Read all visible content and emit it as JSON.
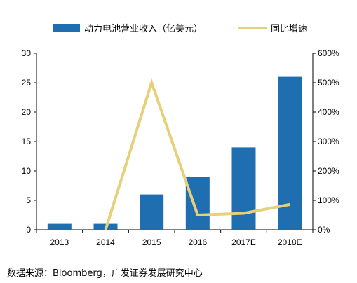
{
  "chart_data": {
    "type": "bar+line",
    "categories": [
      "2013",
      "2014",
      "2015",
      "2016",
      "2017E",
      "2018E"
    ],
    "series": [
      {
        "name": "动力电池营业收入（亿美元）",
        "type": "bar",
        "axis": "left",
        "color": "#1f6eb0",
        "values": [
          1,
          1,
          6,
          9,
          14,
          26
        ]
      },
      {
        "name": "同比增速",
        "type": "line",
        "axis": "right",
        "color": "#e6d07a",
        "values": [
          0,
          0,
          500,
          50,
          56,
          86
        ]
      }
    ],
    "left_axis": {
      "min": 0,
      "max": 30,
      "ticks": [
        "0",
        "5",
        "10",
        "15",
        "20",
        "25",
        "30"
      ]
    },
    "right_axis": {
      "min": 0,
      "max": 600,
      "ticks": [
        "0%",
        "100%",
        "200%",
        "300%",
        "400%",
        "500%",
        "600%"
      ]
    },
    "legend_position": "top",
    "grid": false
  },
  "source": "数据来源：Bloomberg，广发证券发展研究中心"
}
